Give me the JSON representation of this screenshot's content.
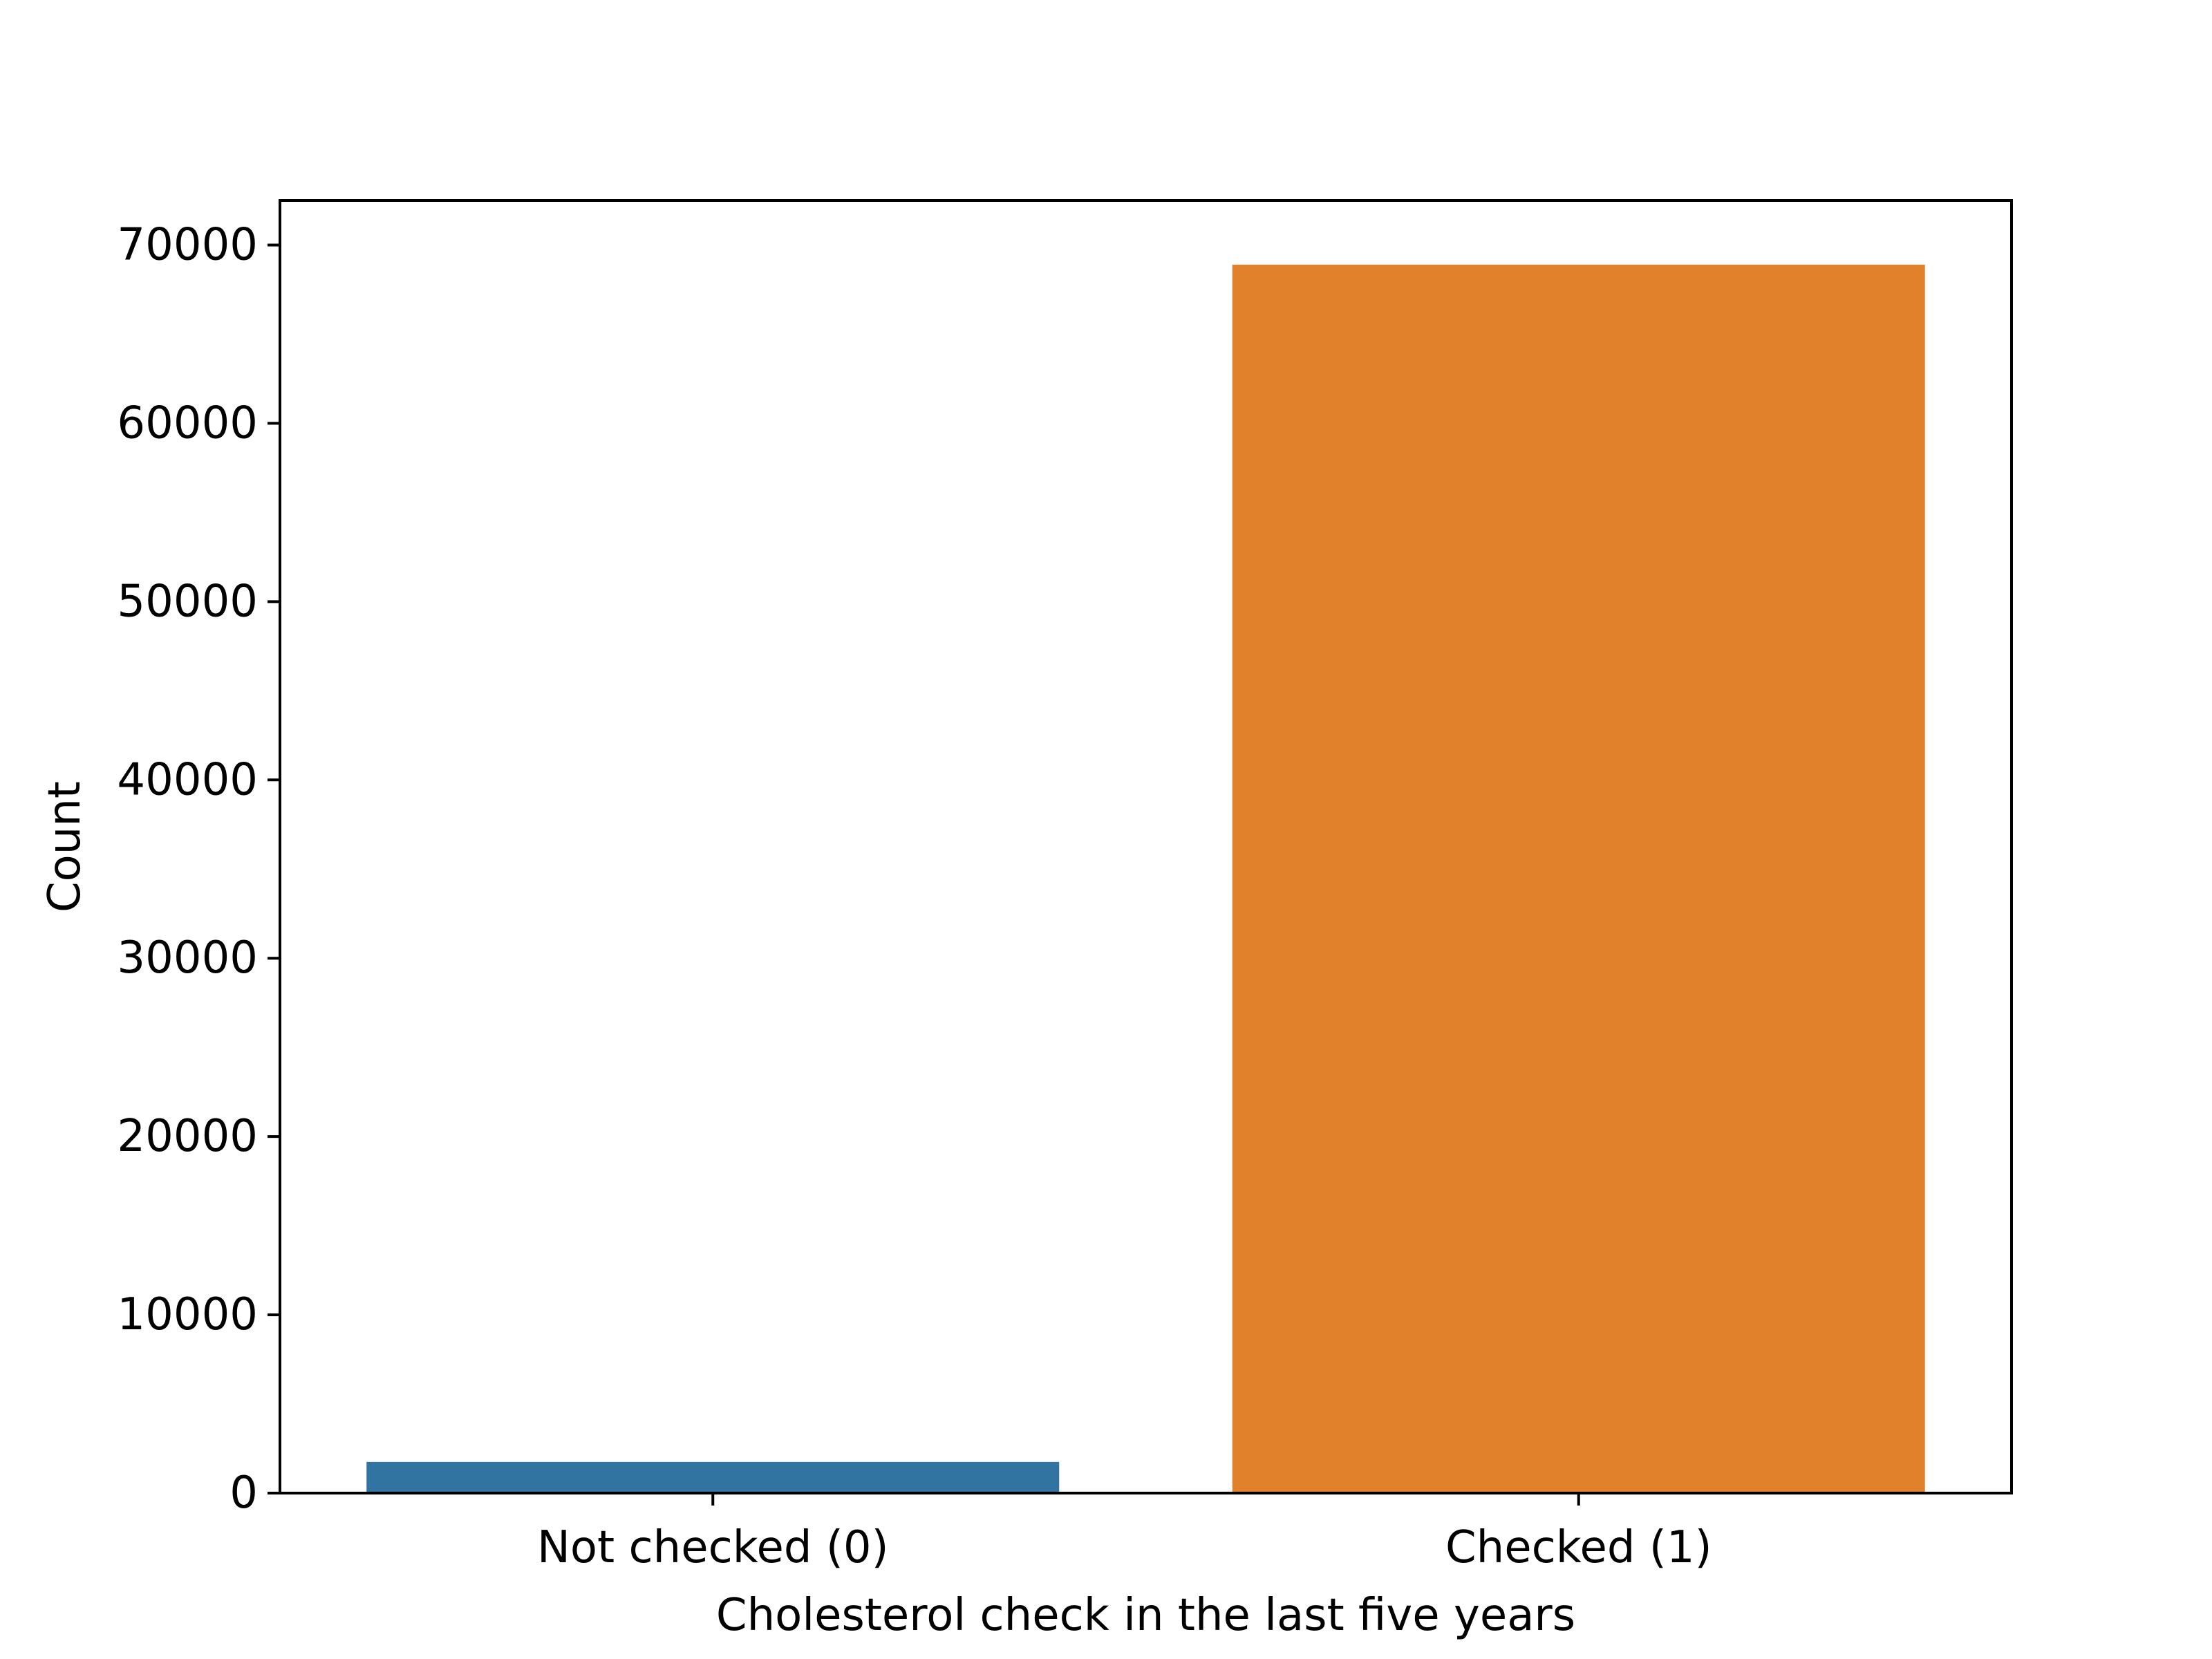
{
  "chart_data": {
    "type": "bar",
    "categories": [
      "Not checked (0)",
      "Checked (1)"
    ],
    "values": [
      1750,
      68900
    ],
    "colors": [
      "#3274a1",
      "#e1812c"
    ],
    "title": "",
    "xlabel": "Cholesterol check in the last five years",
    "ylabel": "Count",
    "ylim": [
      0,
      72500
    ],
    "yticks": [
      0,
      10000,
      20000,
      30000,
      40000,
      50000,
      60000,
      70000
    ],
    "grid": false,
    "legend": false
  }
}
